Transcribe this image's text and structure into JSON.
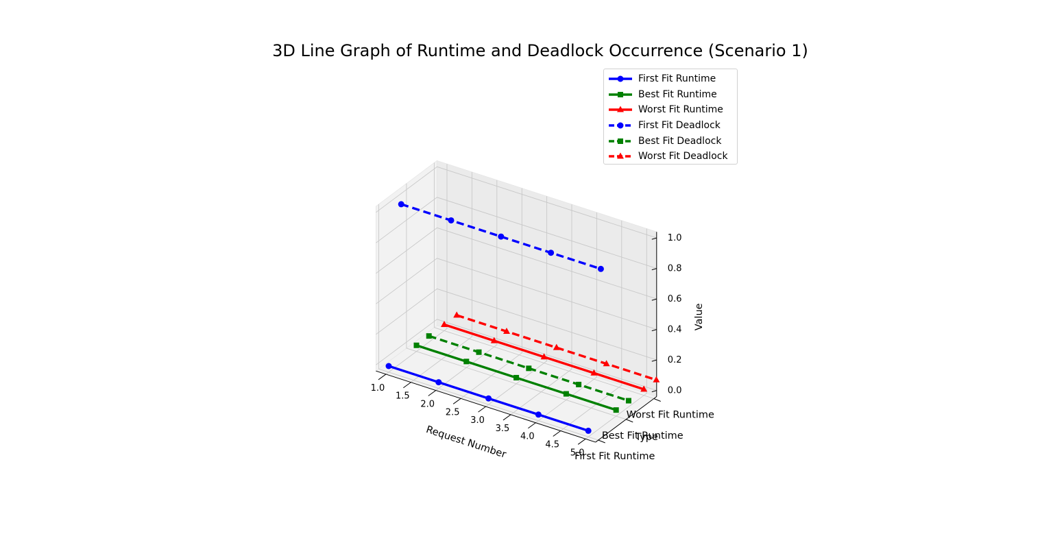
{
  "chart_data": {
    "type": "line",
    "projection": "3d",
    "title": "3D Line Graph of Runtime and Deadlock Occurrence (Scenario 1)",
    "xlabel": "Request Number",
    "ylabel": "Type",
    "zlabel": "Value",
    "x_ticks": [
      "1.0",
      "1.5",
      "2.0",
      "2.5",
      "3.0",
      "3.5",
      "4.0",
      "4.5",
      "5.0"
    ],
    "y_ticks": [
      "First Fit Runtime",
      "Best Fit Runtime",
      "Worst Fit Runtime"
    ],
    "z_ticks": [
      "0.0",
      "0.2",
      "0.4",
      "0.6",
      "0.8",
      "1.0"
    ],
    "xlim": [
      1,
      5
    ],
    "ylim": [
      0,
      2
    ],
    "zlim": [
      0,
      1
    ],
    "grid": true,
    "legend_position": "top-right",
    "x": [
      1,
      2,
      3,
      4,
      5
    ],
    "series": [
      {
        "name": "First Fit Runtime",
        "type_index": 0,
        "values": [
          0,
          0,
          0,
          0,
          0
        ],
        "color": "#0000ff",
        "linestyle": "solid",
        "marker": "circle"
      },
      {
        "name": "Best Fit Runtime",
        "type_index": 1,
        "values": [
          0,
          0,
          0,
          0,
          0
        ],
        "color": "#008000",
        "linestyle": "solid",
        "marker": "square"
      },
      {
        "name": "Worst Fit Runtime",
        "type_index": 2,
        "values": [
          0,
          0,
          0,
          0,
          0
        ],
        "color": "#ff0000",
        "linestyle": "solid",
        "marker": "triangle"
      },
      {
        "name": "First Fit Deadlock",
        "type_index": 0,
        "values": [
          1,
          1,
          1,
          1,
          1
        ],
        "color": "#0000ff",
        "linestyle": "dashed",
        "marker": "circle"
      },
      {
        "name": "Best Fit Deadlock",
        "type_index": 1,
        "values": [
          0,
          0,
          0,
          0,
          0
        ],
        "color": "#008000",
        "linestyle": "dashed",
        "marker": "square"
      },
      {
        "name": "Worst Fit Deadlock",
        "type_index": 2,
        "values": [
          0,
          0,
          0,
          0,
          0
        ],
        "color": "#ff0000",
        "linestyle": "dashed",
        "marker": "triangle"
      }
    ]
  }
}
